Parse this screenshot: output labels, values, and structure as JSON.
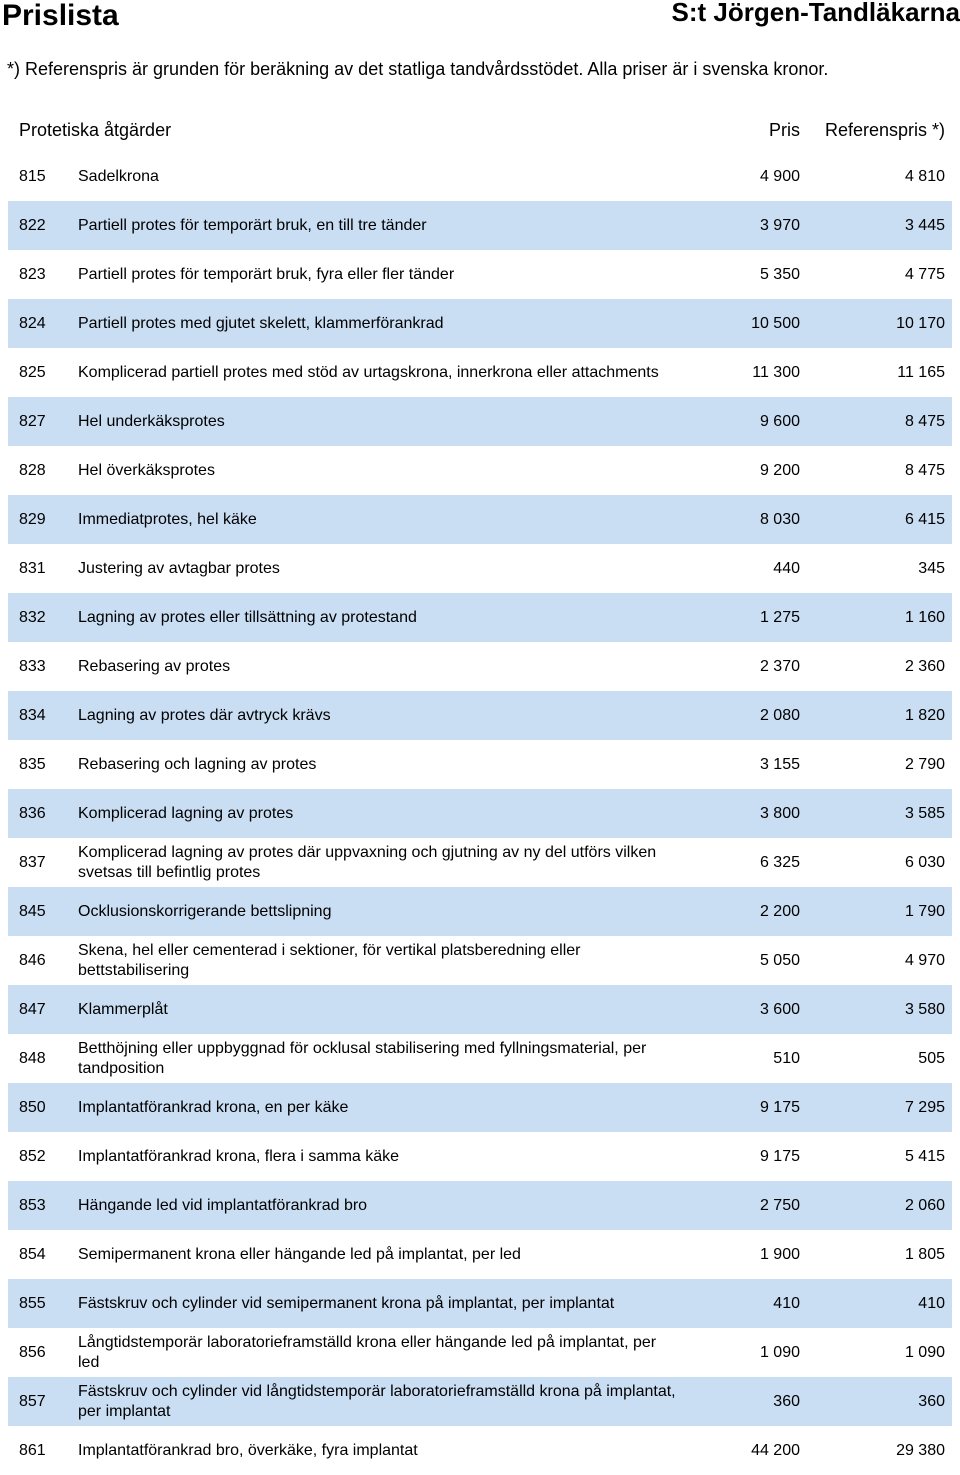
{
  "header": {
    "title": "Prislista",
    "clinic": "S:t Jörgen-Tandläkarna"
  },
  "note": "*) Referenspris är grunden för beräkning av det statliga tandvårdsstödet. Alla priser är i svenska kronor.",
  "table": {
    "section_title": "Protetiska åtgärder",
    "price_header": "Pris",
    "ref_header": "Referenspris *)",
    "rows": [
      {
        "code": "815",
        "desc": "Sadelkrona",
        "price": "4 900",
        "ref": "4 810"
      },
      {
        "code": "822",
        "desc": "Partiell protes för temporärt bruk, en till tre tänder",
        "price": "3 970",
        "ref": "3 445"
      },
      {
        "code": "823",
        "desc": "Partiell protes för temporärt bruk, fyra eller fler tänder",
        "price": "5 350",
        "ref": "4 775"
      },
      {
        "code": "824",
        "desc": "Partiell protes med gjutet skelett, klammerförankrad",
        "price": "10 500",
        "ref": "10 170"
      },
      {
        "code": "825",
        "desc": "Komplicerad partiell protes med stöd av urtagskrona, innerkrona eller attachments",
        "price": "11 300",
        "ref": "11 165"
      },
      {
        "code": "827",
        "desc": "Hel underkäksprotes",
        "price": "9 600",
        "ref": "8 475"
      },
      {
        "code": "828",
        "desc": "Hel överkäksprotes",
        "price": "9 200",
        "ref": "8 475"
      },
      {
        "code": "829",
        "desc": "Immediatprotes, hel käke",
        "price": "8 030",
        "ref": "6 415"
      },
      {
        "code": "831",
        "desc": "Justering av avtagbar protes",
        "price": "440",
        "ref": "345"
      },
      {
        "code": "832",
        "desc": "Lagning av protes eller tillsättning av protestand",
        "price": "1 275",
        "ref": "1 160"
      },
      {
        "code": "833",
        "desc": "Rebasering av protes",
        "price": "2 370",
        "ref": "2 360"
      },
      {
        "code": "834",
        "desc": "Lagning av protes där avtryck krävs",
        "price": "2 080",
        "ref": "1 820"
      },
      {
        "code": "835",
        "desc": "Rebasering och lagning av protes",
        "price": "3 155",
        "ref": "2 790"
      },
      {
        "code": "836",
        "desc": "Komplicerad lagning av protes",
        "price": "3 800",
        "ref": "3 585"
      },
      {
        "code": "837",
        "desc": "Komplicerad lagning av protes där uppvaxning och gjutning av ny del utförs vilken svetsas till befintlig protes",
        "price": "6 325",
        "ref": "6 030"
      },
      {
        "code": "845",
        "desc": "Ocklusionskorrigerande bettslipning",
        "price": "2 200",
        "ref": "1 790"
      },
      {
        "code": "846",
        "desc": "Skena, hel eller cementerad i sektioner, för vertikal platsberedning eller bettstabilisering",
        "price": "5 050",
        "ref": "4 970"
      },
      {
        "code": "847",
        "desc": "Klammerplåt",
        "price": "3 600",
        "ref": "3 580"
      },
      {
        "code": "848",
        "desc": "Betthöjning eller uppbyggnad för ocklusal stabilisering med fyllningsmaterial, per tandposition",
        "price": "510",
        "ref": "505"
      },
      {
        "code": "850",
        "desc": "Implantatförankrad krona, en per käke",
        "price": "9 175",
        "ref": "7 295"
      },
      {
        "code": "852",
        "desc": "Implantatförankrad krona, flera i samma käke",
        "price": "9 175",
        "ref": "5 415"
      },
      {
        "code": "853",
        "desc": "Hängande led vid implantatförankrad bro",
        "price": "2 750",
        "ref": "2 060"
      },
      {
        "code": "854",
        "desc": "Semipermanent krona eller hängande led på implantat, per led",
        "price": "1 900",
        "ref": "1 805"
      },
      {
        "code": "855",
        "desc": "Fästskruv och cylinder vid semipermanent krona på implantat, per implantat",
        "price": "410",
        "ref": "410"
      },
      {
        "code": "856",
        "desc": "Långtidstemporär laboratorieframställd krona eller hängande led på implantat, per led",
        "price": "1 090",
        "ref": "1 090"
      },
      {
        "code": "857",
        "desc": "Fästskruv och cylinder vid långtidstemporär laboratorieframställd krona på implantat, per implantat",
        "price": "360",
        "ref": "360"
      },
      {
        "code": "861",
        "desc": "Implantatförankrad bro, överkäke, fyra implantat",
        "price": "44 200",
        "ref": "29 380"
      }
    ]
  },
  "colors": {
    "row_shade": "#c9ddf3"
  }
}
